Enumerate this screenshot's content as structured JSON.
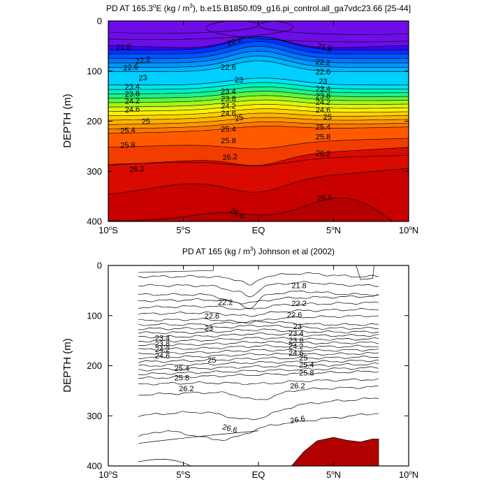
{
  "chart_data": [
    {
      "type": "contour",
      "title": "PD AT 165.3°E (kg / m³), b.e15.B1850.f09_g16.pi_control.all_ga7vdc23.66 [25-44]",
      "title_main": "PD AT 165.3",
      "title_deg": "o",
      "title_after_deg": "E (kg / m",
      "title_sup": "3",
      "title_tail": "), b.e15.B1850.f09_g16.pi_control.all_ga7vdc23.66 [25-44]",
      "ylabel": "DEPTH (m)",
      "xlim": [
        -10,
        10
      ],
      "ylim": [
        400,
        0
      ],
      "y_ticks": [
        0,
        100,
        200,
        300,
        400
      ],
      "x_ticks": [
        {
          "value": -10,
          "label": "10°S",
          "num": "10",
          "hemi": "S"
        },
        {
          "value": -5,
          "label": "5°S",
          "num": "5",
          "hemi": "S"
        },
        {
          "value": 0,
          "label": "EQ",
          "num": "EQ",
          "hemi": ""
        },
        {
          "value": 5,
          "label": "5°N",
          "num": "5",
          "hemi": "N"
        },
        {
          "value": 10,
          "label": "10°N",
          "num": "10",
          "hemi": "N"
        }
      ],
      "filled": true,
      "levels": [
        21.8,
        22.0,
        22.2,
        22.4,
        22.6,
        22.8,
        23.0,
        23.2,
        23.4,
        23.6,
        23.8,
        24.0,
        24.2,
        24.4,
        24.6,
        24.8,
        25.0,
        25.2,
        25.4,
        25.6,
        25.8,
        26.0,
        26.2,
        26.4,
        26.6
      ],
      "fill_colors": [
        "#6d0de8",
        "#3e00f5",
        "#0033ff",
        "#0055ff",
        "#0077ff",
        "#0096ff",
        "#00b4ff",
        "#00cfff",
        "#00e5f0",
        "#00f0c0",
        "#1ff08a",
        "#5ef53e",
        "#a3f51f",
        "#dcf50c",
        "#fdf000",
        "#ffd200",
        "#ffb300",
        "#ff9600",
        "#ff7800",
        "#ff5a00",
        "#f23c00",
        "#e61e00",
        "#d90a00",
        "#c80000",
        "#b40000"
      ],
      "contour_labels": [
        {
          "text": "21.8",
          "x": -9.0,
          "y": 52,
          "angle": -3
        },
        {
          "text": "22.2",
          "x": -7.7,
          "y": 78,
          "angle": -8
        },
        {
          "text": "22.6",
          "x": -8.5,
          "y": 92,
          "angle": -5
        },
        {
          "text": "23",
          "x": -7.7,
          "y": 113,
          "angle": -4
        },
        {
          "text": "23.4",
          "x": -8.4,
          "y": 131,
          "angle": -3
        },
        {
          "text": "23.8",
          "x": -8.4,
          "y": 145,
          "angle": -3
        },
        {
          "text": "24.2",
          "x": -8.4,
          "y": 159,
          "angle": -3
        },
        {
          "text": "24.6",
          "x": -8.4,
          "y": 176,
          "angle": -3
        },
        {
          "text": "25",
          "x": -7.5,
          "y": 200,
          "angle": -3
        },
        {
          "text": "25.4",
          "x": -8.7,
          "y": 218,
          "angle": -3
        },
        {
          "text": "25.8",
          "x": -8.7,
          "y": 247,
          "angle": -2
        },
        {
          "text": "26.2",
          "x": -8.1,
          "y": 295,
          "angle": -5
        },
        {
          "text": "22.2",
          "x": -1.6,
          "y": 40,
          "angle": -20
        },
        {
          "text": "22.6",
          "x": -2.0,
          "y": 92,
          "angle": 0
        },
        {
          "text": "23",
          "x": -1.3,
          "y": 117,
          "angle": 0
        },
        {
          "text": "23.4",
          "x": -2.0,
          "y": 140,
          "angle": 0
        },
        {
          "text": "23.8",
          "x": -2.0,
          "y": 155,
          "angle": 0
        },
        {
          "text": "24.2",
          "x": -2.0,
          "y": 169,
          "angle": 0
        },
        {
          "text": "24.6",
          "x": -2.0,
          "y": 184,
          "angle": 0
        },
        {
          "text": "25",
          "x": -1.3,
          "y": 193,
          "angle": -15
        },
        {
          "text": "25.4",
          "x": -2.0,
          "y": 215,
          "angle": 0
        },
        {
          "text": "25.8",
          "x": -2.0,
          "y": 238,
          "angle": 0
        },
        {
          "text": "26.2",
          "x": -1.9,
          "y": 271,
          "angle": -5
        },
        {
          "text": "26.6",
          "x": -1.4,
          "y": 383,
          "angle": 28
        },
        {
          "text": "21.8",
          "x": 4.4,
          "y": 52,
          "angle": 15
        },
        {
          "text": "22.2",
          "x": 4.3,
          "y": 82,
          "angle": 5
        },
        {
          "text": "22.6",
          "x": 4.3,
          "y": 101,
          "angle": 0
        },
        {
          "text": "23",
          "x": 4.3,
          "y": 120,
          "angle": 0
        },
        {
          "text": "23.4",
          "x": 4.3,
          "y": 135,
          "angle": 0
        },
        {
          "text": "23.8",
          "x": 4.3,
          "y": 149,
          "angle": 0
        },
        {
          "text": "24.2",
          "x": 4.3,
          "y": 162,
          "angle": 0
        },
        {
          "text": "24.6",
          "x": 4.3,
          "y": 177,
          "angle": 0
        },
        {
          "text": "25",
          "x": 4.6,
          "y": 191,
          "angle": 0
        },
        {
          "text": "25.4",
          "x": 4.3,
          "y": 211,
          "angle": 0
        },
        {
          "text": "25.8",
          "x": 4.3,
          "y": 231,
          "angle": 0
        },
        {
          "text": "26.2",
          "x": 4.3,
          "y": 264,
          "angle": 5
        },
        {
          "text": "26.6",
          "x": 4.4,
          "y": 352,
          "angle": -5
        }
      ]
    },
    {
      "type": "contour",
      "title": "PD AT 165 (kg / m³) Johnson et al (2002)",
      "title_main": "PD AT 165 (kg / m",
      "title_sup": "3",
      "title_tail": ") Johnson et al (2002)",
      "ylabel": "DEPTH (m)",
      "xlim": [
        -10,
        10
      ],
      "ylim": [
        400,
        0
      ],
      "data_x_range": [
        -8,
        8
      ],
      "y_ticks": [
        0,
        100,
        200,
        300,
        400
      ],
      "x_ticks": [
        {
          "value": -10,
          "label": "10°S",
          "num": "10",
          "hemi": "S"
        },
        {
          "value": -5,
          "label": "5°S",
          "num": "5",
          "hemi": "S"
        },
        {
          "value": 0,
          "label": "EQ",
          "num": "EQ",
          "hemi": ""
        },
        {
          "value": 5,
          "label": "5°N",
          "num": "5",
          "hemi": "N"
        },
        {
          "value": 10,
          "label": "10°N",
          "num": "10",
          "hemi": "N"
        }
      ],
      "filled": false,
      "shaded_region_color": "#b00000",
      "contour_labels": [
        {
          "text": "21.8",
          "x": 2.7,
          "y": 40,
          "angle": 0
        },
        {
          "text": "22.2",
          "x": -2.2,
          "y": 73,
          "angle": 0
        },
        {
          "text": "22.2",
          "x": 2.7,
          "y": 75,
          "angle": 0
        },
        {
          "text": "22.6",
          "x": -3.1,
          "y": 100,
          "angle": 0
        },
        {
          "text": "22.6",
          "x": 2.4,
          "y": 98,
          "angle": 0
        },
        {
          "text": "23",
          "x": -3.3,
          "y": 125,
          "angle": 0
        },
        {
          "text": "23",
          "x": 2.6,
          "y": 121,
          "angle": 0
        },
        {
          "text": "23.4",
          "x": -6.4,
          "y": 144,
          "angle": 0
        },
        {
          "text": "23.4",
          "x": 2.5,
          "y": 135,
          "angle": 0
        },
        {
          "text": "23.8",
          "x": -6.4,
          "y": 156,
          "angle": 0
        },
        {
          "text": "23.8",
          "x": 2.5,
          "y": 149,
          "angle": 0
        },
        {
          "text": "24.2",
          "x": -6.4,
          "y": 167,
          "angle": 0
        },
        {
          "text": "24.2",
          "x": 2.5,
          "y": 161,
          "angle": 0
        },
        {
          "text": "24.6",
          "x": -6.4,
          "y": 180,
          "angle": 0
        },
        {
          "text": "24.6",
          "x": 2.5,
          "y": 174,
          "angle": 0
        },
        {
          "text": "25",
          "x": -3.1,
          "y": 188,
          "angle": 0
        },
        {
          "text": "25",
          "x": 3.0,
          "y": 184,
          "angle": 0
        },
        {
          "text": "25.4",
          "x": -5.1,
          "y": 205,
          "angle": 0
        },
        {
          "text": "25.4",
          "x": 3.2,
          "y": 198,
          "angle": 0
        },
        {
          "text": "25.8",
          "x": -5.1,
          "y": 224,
          "angle": 0
        },
        {
          "text": "25.8",
          "x": 3.2,
          "y": 214,
          "angle": 0
        },
        {
          "text": "26.2",
          "x": -4.8,
          "y": 245,
          "angle": 0
        },
        {
          "text": "26.2",
          "x": 2.6,
          "y": 240,
          "angle": 0
        },
        {
          "text": "26.6",
          "x": -1.9,
          "y": 325,
          "angle": 15
        },
        {
          "text": "26.6",
          "x": 2.6,
          "y": 307,
          "angle": -10
        }
      ]
    }
  ]
}
